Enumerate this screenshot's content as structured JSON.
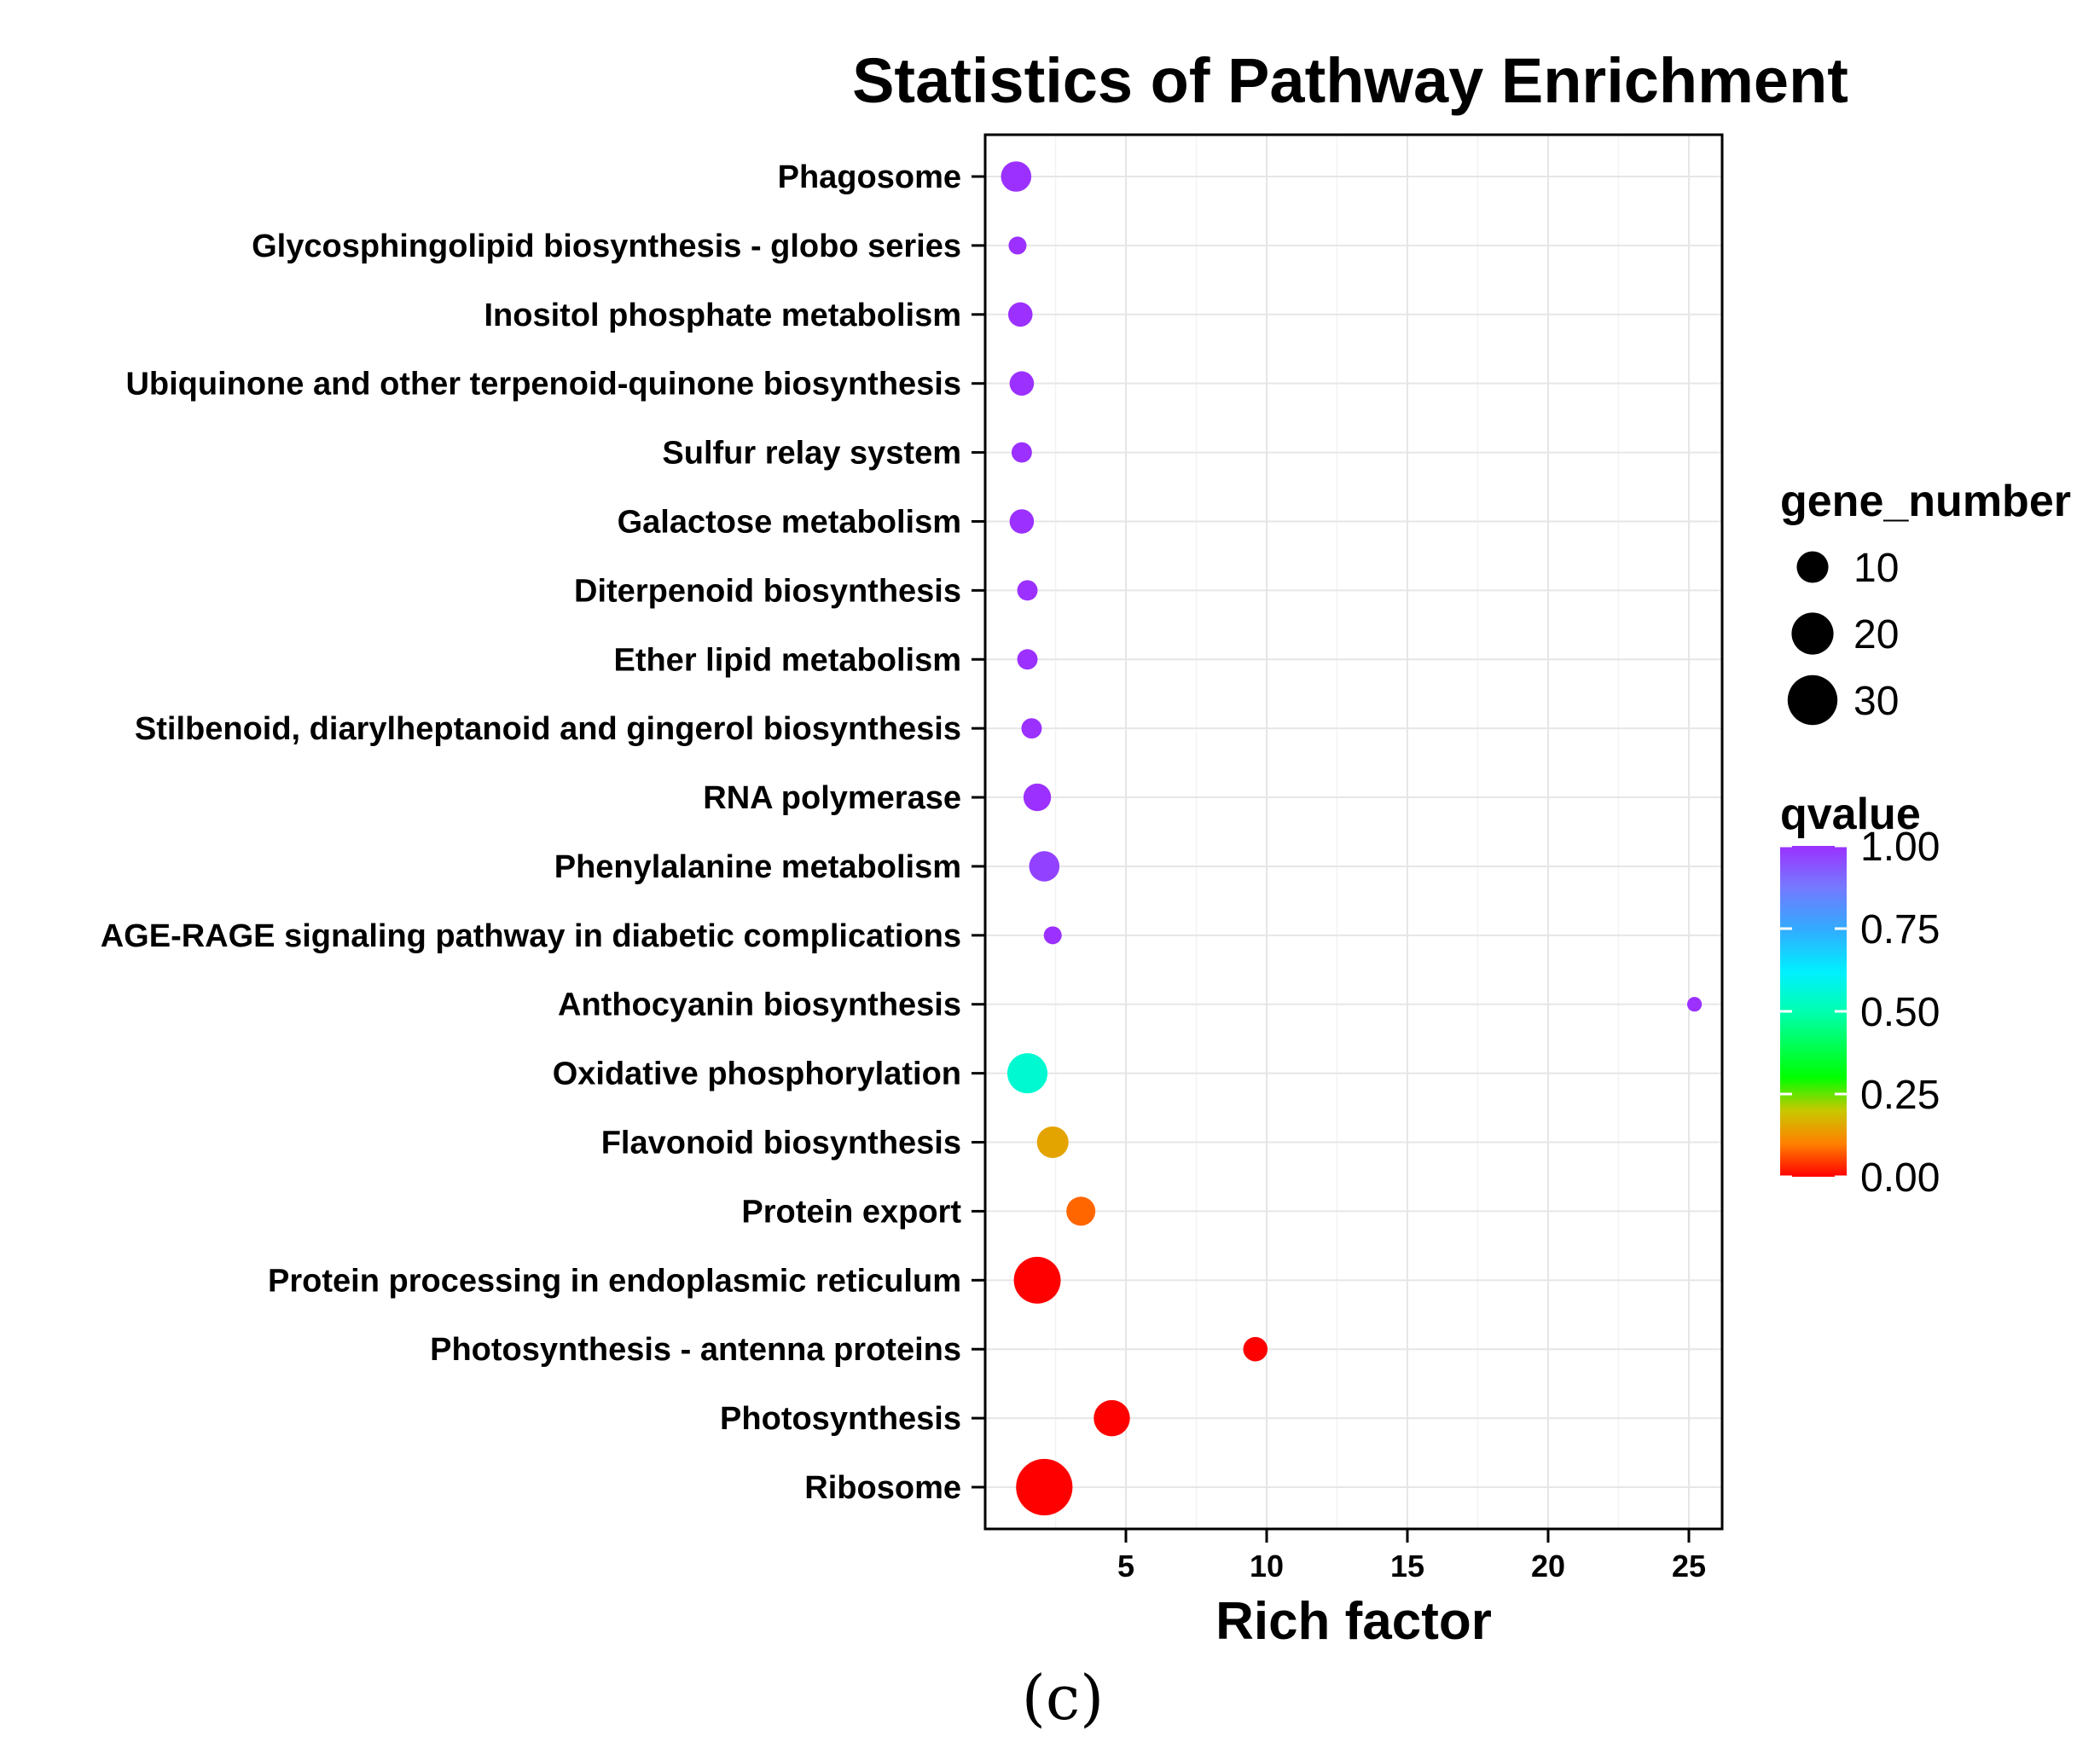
{
  "chart_data": {
    "type": "scatter",
    "title": "Statistics of Pathway Enrichment",
    "xlabel": "Rich factor",
    "ylabel": "",
    "xlim": [
      0,
      26
    ],
    "xticks": [
      5,
      10,
      15,
      20,
      25
    ],
    "grid": true,
    "panel_label": "(c)",
    "points": [
      {
        "pathway": "Phagosome",
        "rich_factor": 1.1,
        "gene_number": 9,
        "qvalue": 1.0
      },
      {
        "pathway": "Glycosphingolipid biosynthesis - globo series",
        "rich_factor": 1.15,
        "gene_number": 2,
        "qvalue": 1.0
      },
      {
        "pathway": "Inositol phosphate metabolism",
        "rich_factor": 1.25,
        "gene_number": 5,
        "qvalue": 1.0
      },
      {
        "pathway": "Ubiquinone and other terpenoid-quinone biosynthesis",
        "rich_factor": 1.3,
        "gene_number": 5,
        "qvalue": 1.0
      },
      {
        "pathway": "Sulfur relay system",
        "rich_factor": 1.3,
        "gene_number": 3,
        "qvalue": 1.0
      },
      {
        "pathway": "Galactose metabolism",
        "rich_factor": 1.3,
        "gene_number": 5,
        "qvalue": 1.0
      },
      {
        "pathway": "Diterpenoid biosynthesis",
        "rich_factor": 1.5,
        "gene_number": 3,
        "qvalue": 1.0
      },
      {
        "pathway": "Ether lipid metabolism",
        "rich_factor": 1.5,
        "gene_number": 3,
        "qvalue": 1.0
      },
      {
        "pathway": "Stilbenoid, diarylheptanoid and gingerol biosynthesis",
        "rich_factor": 1.65,
        "gene_number": 3,
        "qvalue": 1.0
      },
      {
        "pathway": "RNA polymerase",
        "rich_factor": 1.85,
        "gene_number": 7,
        "qvalue": 1.0
      },
      {
        "pathway": "Phenylalanine metabolism",
        "rich_factor": 2.1,
        "gene_number": 9,
        "qvalue": 0.97
      },
      {
        "pathway": "AGE-RAGE signaling pathway in diabetic complications",
        "rich_factor": 2.4,
        "gene_number": 2,
        "qvalue": 1.0
      },
      {
        "pathway": "Anthocyanin biosynthesis",
        "rich_factor": 25.2,
        "gene_number": 1,
        "qvalue": 1.0
      },
      {
        "pathway": "Oxidative phosphorylation",
        "rich_factor": 1.5,
        "gene_number": 18,
        "qvalue": 0.55
      },
      {
        "pathway": "Flavonoid biosynthesis",
        "rich_factor": 2.4,
        "gene_number": 10,
        "qvalue": 0.15
      },
      {
        "pathway": "Protein export",
        "rich_factor": 3.4,
        "gene_number": 8,
        "qvalue": 0.08
      },
      {
        "pathway": "Protein processing in endoplasmic reticulum",
        "rich_factor": 1.85,
        "gene_number": 26,
        "qvalue": 0.0
      },
      {
        "pathway": "Photosynthesis - antenna proteins",
        "rich_factor": 9.6,
        "gene_number": 5,
        "qvalue": 0.0
      },
      {
        "pathway": "Photosynthesis",
        "rich_factor": 4.5,
        "gene_number": 14,
        "qvalue": 0.0
      },
      {
        "pathway": "Ribosome",
        "rich_factor": 2.1,
        "gene_number": 40,
        "qvalue": 0.0
      }
    ],
    "legend": {
      "size": {
        "title": "gene_number",
        "values": [
          10,
          20,
          30
        ],
        "labels": [
          "10",
          "20",
          "30"
        ]
      },
      "color": {
        "title": "qvalue",
        "ticks": [
          1.0,
          0.75,
          0.5,
          0.25,
          0.0
        ],
        "tick_labels": [
          "1.00",
          "0.75",
          "0.50",
          "0.25",
          "0.00"
        ],
        "stops": [
          {
            "q": 0.0,
            "color": "#ff0000"
          },
          {
            "q": 0.1,
            "color": "#ff8000"
          },
          {
            "q": 0.2,
            "color": "#c8c800"
          },
          {
            "q": 0.3,
            "color": "#00ff00"
          },
          {
            "q": 0.5,
            "color": "#00ffb0"
          },
          {
            "q": 0.62,
            "color": "#00f0ff"
          },
          {
            "q": 0.75,
            "color": "#33aaff"
          },
          {
            "q": 0.88,
            "color": "#7777ff"
          },
          {
            "q": 1.0,
            "color": "#9b30ff"
          }
        ]
      }
    }
  }
}
